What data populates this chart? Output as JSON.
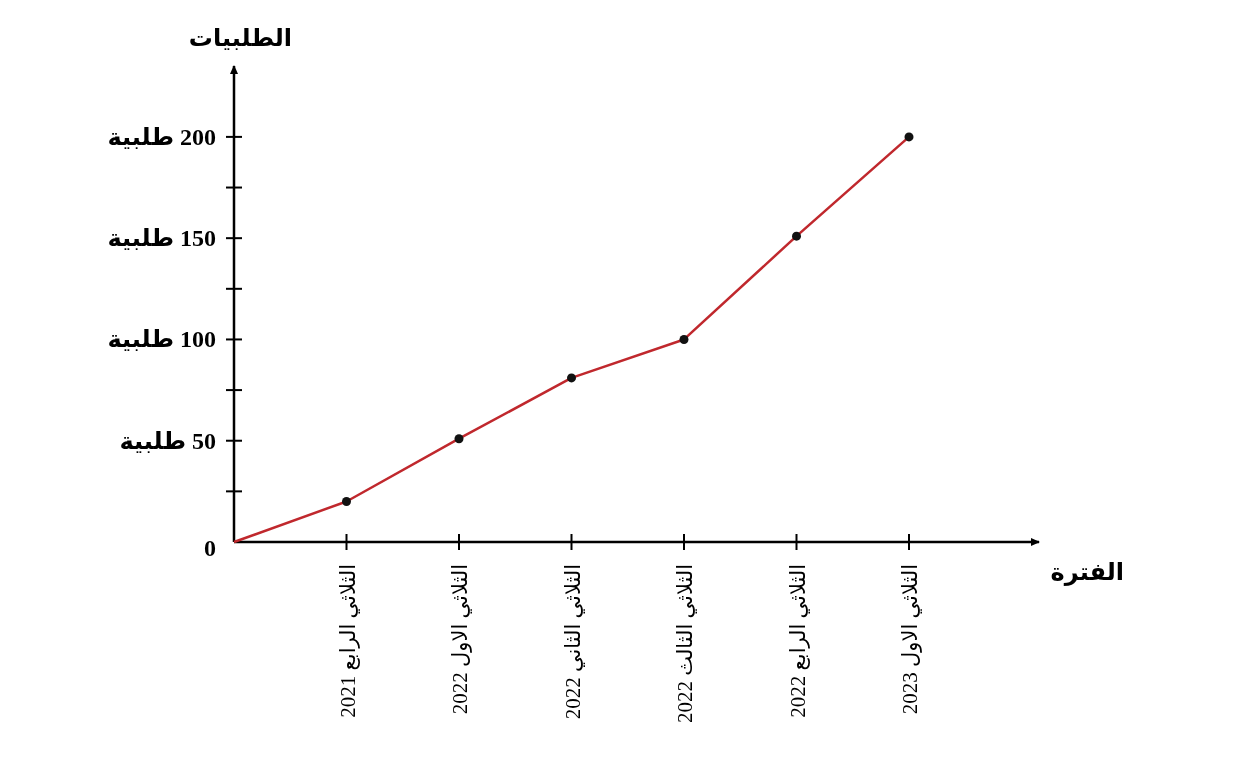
{
  "chart_data": {
    "type": "line",
    "xlabel": "الفترة",
    "ylabel": "الطلبيات",
    "categories": [
      null,
      "الثلاثي الرابع 2021",
      "الثلاثي الاول 2022",
      "الثلاثي الثاني 2022",
      "الثلاثي الثالث 2022",
      "الثلاثي الرابع 2022",
      "الثلاثي الاول 2023"
    ],
    "series": [
      {
        "color": "#c0282d",
        "values": [
          0,
          20,
          51,
          81,
          100,
          151,
          200
        ]
      }
    ],
    "ylim": [
      0,
      235
    ],
    "yticks": [
      0,
      {
        "value": 25,
        "label": null
      },
      {
        "value": 50,
        "label": "50 طلبية"
      },
      {
        "value": 75,
        "label": null
      },
      {
        "value": 100,
        "label": "100 طلبية"
      },
      {
        "value": 125,
        "label": null
      },
      {
        "value": 150,
        "label": "150 طلبية"
      },
      {
        "value": 175,
        "label": null
      },
      {
        "value": 200,
        "label": "200 طلبية"
      }
    ],
    "marker": "circle"
  }
}
